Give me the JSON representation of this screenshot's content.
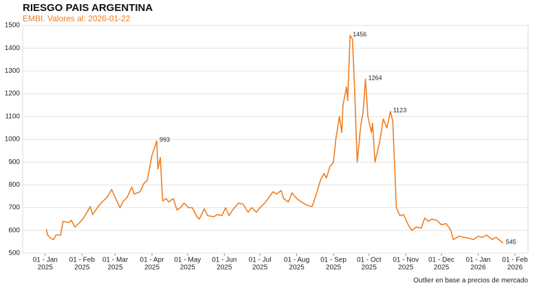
{
  "chart_data": {
    "type": "line",
    "title": "RIESGO PAIS ARGENTINA",
    "subtitle": "EMBI. Valores al: 2026-01-22",
    "footnote": "Outlier en base a precios de mercado",
    "color": "#f07c1e",
    "grid": true,
    "x": [
      "2025-01-02",
      "2025-01-03",
      "2025-01-06",
      "2025-01-08",
      "2025-01-10",
      "2025-01-14",
      "2025-01-16",
      "2025-01-21",
      "2025-01-23",
      "2025-01-26",
      "2025-01-31",
      "2025-02-03",
      "2025-02-08",
      "2025-02-10",
      "2025-02-14",
      "2025-02-17",
      "2025-02-22",
      "2025-02-26",
      "2025-03-01",
      "2025-03-05",
      "2025-03-08",
      "2025-03-11",
      "2025-03-15",
      "2025-03-17",
      "2025-03-22",
      "2025-03-25",
      "2025-03-28",
      "2025-04-01",
      "2025-04-05",
      "2025-04-06",
      "2025-04-08",
      "2025-04-10",
      "2025-04-13",
      "2025-04-15",
      "2025-04-19",
      "2025-04-22",
      "2025-04-25",
      "2025-04-28",
      "2025-05-02",
      "2025-05-05",
      "2025-05-09",
      "2025-05-11",
      "2025-05-15",
      "2025-05-18",
      "2025-05-23",
      "2025-05-26",
      "2025-05-30",
      "2025-06-02",
      "2025-06-05",
      "2025-06-08",
      "2025-06-13",
      "2025-06-17",
      "2025-06-21",
      "2025-06-24",
      "2025-06-28",
      "2025-07-01",
      "2025-07-05",
      "2025-07-08",
      "2025-07-12",
      "2025-07-15",
      "2025-07-19",
      "2025-07-21",
      "2025-07-25",
      "2025-07-28",
      "2025-08-01",
      "2025-08-05",
      "2025-08-10",
      "2025-08-14",
      "2025-08-17",
      "2025-08-21",
      "2025-08-24",
      "2025-08-26",
      "2025-08-29",
      "2025-09-01",
      "2025-09-03",
      "2025-09-06",
      "2025-09-08",
      "2025-09-09",
      "2025-09-12",
      "2025-09-13",
      "2025-09-15",
      "2025-09-17",
      "2025-09-19",
      "2025-09-21",
      "2025-09-24",
      "2025-09-26",
      "2025-09-28",
      "2025-09-30",
      "2025-10-03",
      "2025-10-04",
      "2025-10-06",
      "2025-10-10",
      "2025-10-13",
      "2025-10-16",
      "2025-10-19",
      "2025-10-21",
      "2025-10-24",
      "2025-10-27",
      "2025-10-30",
      "2025-11-03",
      "2025-11-06",
      "2025-11-10",
      "2025-11-14",
      "2025-11-17",
      "2025-11-20",
      "2025-11-23",
      "2025-11-27",
      "2025-12-01",
      "2025-12-05",
      "2025-12-09",
      "2025-12-11",
      "2025-12-16",
      "2025-12-20",
      "2025-12-25",
      "2025-12-28",
      "2026-01-01",
      "2026-01-05",
      "2026-01-08",
      "2026-01-13",
      "2026-01-16",
      "2026-01-22"
    ],
    "values": [
      605,
      580,
      565,
      560,
      580,
      580,
      640,
      635,
      645,
      615,
      640,
      660,
      705,
      670,
      700,
      720,
      745,
      780,
      745,
      700,
      730,
      745,
      790,
      760,
      770,
      805,
      820,
      930,
      993,
      870,
      920,
      730,
      740,
      725,
      740,
      690,
      700,
      720,
      700,
      700,
      660,
      650,
      695,
      665,
      660,
      670,
      665,
      700,
      665,
      690,
      720,
      715,
      680,
      700,
      680,
      700,
      720,
      740,
      770,
      760,
      775,
      740,
      725,
      765,
      740,
      725,
      710,
      705,
      750,
      820,
      850,
      830,
      880,
      900,
      1000,
      1100,
      1030,
      1150,
      1230,
      1170,
      1456,
      1440,
      1200,
      900,
      1060,
      1120,
      1264,
      1100,
      1030,
      1070,
      900,
      990,
      1090,
      1050,
      1123,
      1080,
      700,
      665,
      670,
      625,
      600,
      615,
      610,
      655,
      640,
      650,
      645,
      625,
      630,
      600,
      560,
      575,
      570,
      565,
      560,
      575,
      570,
      580,
      560,
      570,
      545
    ],
    "labeled_points": [
      28,
      80,
      86,
      94,
      120
    ],
    "xlim": [
      "2024-12-13",
      "2026-02-12"
    ],
    "xticks": [
      {
        "value": "2025-01-01",
        "label": [
          "01 - Jan",
          "2025"
        ]
      },
      {
        "value": "2025-02-01",
        "label": [
          "01 - Feb",
          "2025"
        ]
      },
      {
        "value": "2025-03-01",
        "label": [
          "01 - Mar",
          "2025"
        ]
      },
      {
        "value": "2025-04-01",
        "label": [
          "01 - Apr",
          "2025"
        ]
      },
      {
        "value": "2025-05-01",
        "label": [
          "01 - May",
          "2025"
        ]
      },
      {
        "value": "2025-06-01",
        "label": [
          "01 - Jun",
          "2025"
        ]
      },
      {
        "value": "2025-07-01",
        "label": [
          "01 - Jul",
          "2025"
        ]
      },
      {
        "value": "2025-08-01",
        "label": [
          "01 - Aug",
          "2025"
        ]
      },
      {
        "value": "2025-09-01",
        "label": [
          "01 - Sep",
          "2025"
        ]
      },
      {
        "value": "2025-10-01",
        "label": [
          "01 - Oct",
          "2025"
        ]
      },
      {
        "value": "2025-11-01",
        "label": [
          "01 - Nov",
          "2025"
        ]
      },
      {
        "value": "2025-12-01",
        "label": [
          "01 - Dec",
          "2025"
        ]
      },
      {
        "value": "2026-01-01",
        "label": [
          "01 - Jan",
          "2026"
        ]
      },
      {
        "value": "2026-02-01",
        "label": [
          "01 - Feb",
          "2026"
        ]
      }
    ],
    "ylim": [
      500,
      1500
    ],
    "yticks": [
      500,
      600,
      700,
      800,
      900,
      1000,
      1100,
      1200,
      1300,
      1400,
      1500
    ]
  }
}
